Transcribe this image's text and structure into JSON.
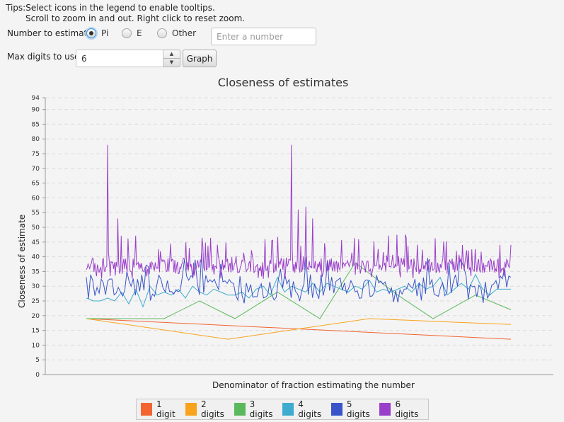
{
  "tips": {
    "label": "Tips:",
    "line1": "Select icons in the legend to enable tooltips.",
    "line2": "Scroll to zoom in and out. Right click to reset zoom."
  },
  "estimate": {
    "label": "Number to estimate:",
    "options": [
      {
        "label": "Pi",
        "selected": true
      },
      {
        "label": "E",
        "selected": false
      },
      {
        "label": "Other",
        "selected": false
      }
    ],
    "other_placeholder": "Enter a number"
  },
  "digits": {
    "label": "Max digits to use:",
    "value": "6",
    "graph_button": "Graph"
  },
  "chart_data": {
    "type": "line",
    "title": "Closeness of estimates",
    "xlabel": "Denominator of fraction estimating the number",
    "ylabel": "Closeness of estimate",
    "ylim": [
      0,
      94
    ],
    "yticks": [
      0,
      5,
      10,
      15,
      20,
      25,
      30,
      35,
      40,
      45,
      50,
      55,
      60,
      65,
      70,
      75,
      80,
      85,
      90,
      94
    ],
    "xlim": [
      0,
      1000000
    ],
    "grid": true,
    "legend": "bottom",
    "series": [
      {
        "name": "1 digit",
        "color": "#f26532",
        "x": [
          0,
          600000
        ],
        "y": [
          19,
          12
        ]
      },
      {
        "name": "2 digits",
        "color": "#f9a31c",
        "x": [
          0,
          200000,
          400000,
          600000
        ],
        "y": [
          19,
          12,
          19,
          17
        ]
      },
      {
        "name": "3 digits",
        "color": "#5cb85c",
        "x": [
          0,
          110000,
          160000,
          210000,
          270000,
          330000,
          380000,
          440000,
          490000,
          550000,
          600000
        ],
        "y": [
          19,
          19,
          25,
          19,
          28,
          19,
          38,
          27,
          19,
          27,
          22
        ]
      },
      {
        "name": "4 digits",
        "color": "#3eabcf",
        "x": [
          0,
          10000,
          20000,
          30000,
          40000,
          50000,
          60000,
          70000,
          80000,
          90000,
          100000,
          110000,
          120000,
          130000,
          140000,
          150000,
          160000,
          170000,
          180000,
          190000,
          200000,
          210000,
          220000,
          230000,
          240000,
          250000,
          260000,
          270000,
          280000,
          290000,
          300000,
          310000,
          320000,
          330000,
          340000,
          350000,
          360000,
          370000,
          380000,
          390000,
          400000,
          410000,
          420000,
          430000,
          440000,
          450000,
          460000,
          470000,
          480000,
          490000,
          500000,
          510000,
          520000,
          530000,
          540000,
          550000,
          560000,
          570000,
          580000,
          590000,
          600000
        ],
        "y": [
          26,
          25,
          25,
          26,
          25,
          28,
          24,
          29,
          23,
          30,
          27,
          28,
          27,
          29,
          26,
          30,
          28,
          27,
          29,
          28,
          27,
          27,
          28,
          26,
          29,
          30,
          27,
          33,
          28,
          30,
          29,
          28,
          31,
          28,
          31,
          30,
          29,
          28,
          30,
          29,
          32,
          28,
          29,
          28,
          29,
          30,
          28,
          31,
          29,
          30,
          33,
          27,
          29,
          31,
          29,
          34,
          29,
          27,
          29,
          29,
          29
        ]
      },
      {
        "name": "5 digits",
        "color": "#3a55c9",
        "spiky": true,
        "base": 30,
        "amp": 4,
        "seed": 5,
        "x_end": 600000,
        "points": 200
      },
      {
        "name": "6 digits",
        "color": "#9a3fc9",
        "spiky": true,
        "base": 37,
        "amp": 2.5,
        "seed": 9,
        "x_end": 600000,
        "points": 500,
        "peaks": [
          [
            30000,
            78
          ],
          [
            290000,
            78
          ],
          [
            45000,
            53
          ],
          [
            310000,
            57
          ],
          [
            320000,
            53
          ],
          [
            300000,
            56
          ]
        ]
      }
    ]
  }
}
